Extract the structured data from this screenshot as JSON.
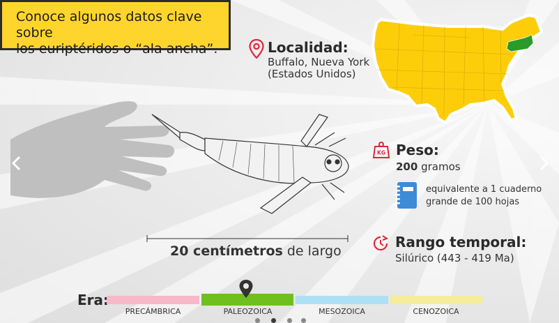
{
  "headline": {
    "line1": "Conoce algunos datos clave sobre",
    "line2": "los euriptéridos o “ala ancha”."
  },
  "locality": {
    "title": "Localidad:",
    "place": "Buffalo, Nueva York",
    "country": "(Estados Unidos)",
    "icon": "location-pin-icon"
  },
  "map": {
    "icon": "usa-map",
    "colors": {
      "usa": "#fdcd0a",
      "highlight": "#2a9a2a"
    }
  },
  "weight": {
    "title": "Peso:",
    "value": "200",
    "unit": "gramos",
    "icon": "weight-kg-icon",
    "kg_label": "KG",
    "equivalence_line1": "equivalente a 1 cuaderno",
    "equivalence_line2": "grande de 100 hojas",
    "notebook_icon": "notebook-icon"
  },
  "size": {
    "value": "20 centímetros",
    "suffix": " de largo"
  },
  "range": {
    "title": "Rango temporal:",
    "value": "Silúrico (443 - 419 Ma)",
    "icon": "clock-time-icon"
  },
  "eras": {
    "label": "Era:",
    "items": [
      {
        "name": "PRECÁMBRICA",
        "color": "#f7b8c8"
      },
      {
        "name": "PALEOZOICA",
        "color": "#6fbf1f"
      },
      {
        "name": "MESOZOICA",
        "color": "#aee0f5"
      },
      {
        "name": "CENOZOICA",
        "color": "#f6ec9e"
      }
    ],
    "selected": "PALEOZOICA"
  },
  "navigation": {
    "prev_icon": "chevron-left-icon",
    "next_icon": "chevron-right-icon"
  },
  "colors": {
    "accent": "#e0263c",
    "headline_bg": "#fed52c",
    "notebook": "#3d8ad6"
  }
}
